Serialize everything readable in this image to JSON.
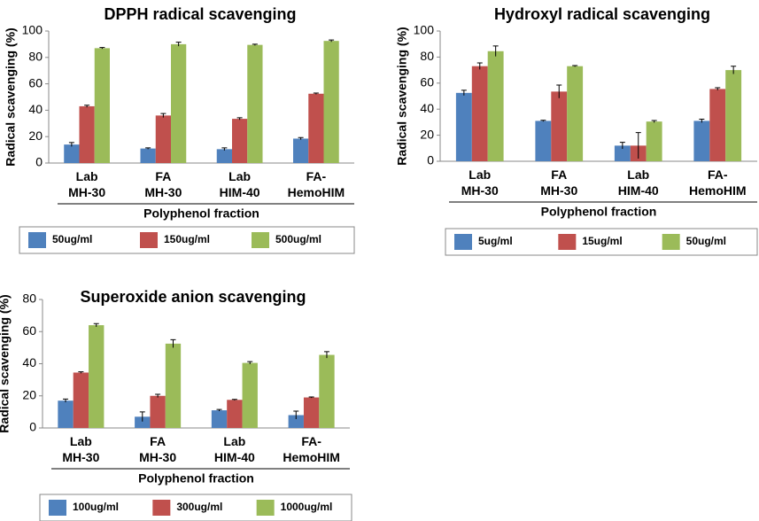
{
  "chart_data": [
    {
      "type": "bar",
      "title": "DPPH radical scavenging",
      "ylabel": "Radical scavenging (%)",
      "xlabel": "Polyphenol fraction",
      "categories": [
        "Lab\nMH-30",
        "FA\nMH-30",
        "Lab\nHIM-40",
        "FA-\nHemoHIM"
      ],
      "ylim": [
        0,
        100
      ],
      "yticks": [
        0,
        20,
        40,
        60,
        80,
        100
      ],
      "series": [
        {
          "name": "50ug/ml",
          "color": "#4f81bd",
          "values": [
            14,
            11,
            10.5,
            18.5
          ],
          "errors": [
            1.5,
            0.5,
            1,
            0.8
          ]
        },
        {
          "name": "150ug/ml",
          "color": "#c0504d",
          "values": [
            43,
            36,
            33.5,
            52.5
          ],
          "errors": [
            0.8,
            1.5,
            0.8,
            0.5
          ]
        },
        {
          "name": "500ug/ml",
          "color": "#9bbb59",
          "values": [
            87,
            90,
            89.5,
            92.5
          ],
          "errors": [
            0.5,
            1.5,
            0.5,
            0.7
          ]
        }
      ]
    },
    {
      "type": "bar",
      "title": "Hydroxyl radical scavenging",
      "ylabel": "Radical scavenging (%)",
      "xlabel": "Polyphenol fraction",
      "categories": [
        "Lab\nMH-30",
        "FA\nMH-30",
        "Lab\nHIM-40",
        "FA-\nHemoHIM"
      ],
      "ylim": [
        0,
        100
      ],
      "yticks": [
        0,
        20,
        40,
        60,
        80,
        100
      ],
      "series": [
        {
          "name": "5ug/ml",
          "color": "#4f81bd",
          "values": [
            52.5,
            31,
            12,
            31
          ],
          "errors": [
            2,
            0.5,
            2.5,
            1.3
          ]
        },
        {
          "name": "15ug/ml",
          "color": "#c0504d",
          "values": [
            73,
            53.5,
            12,
            55.5
          ],
          "errors": [
            2.5,
            5,
            10,
            1
          ]
        },
        {
          "name": "50ug/ml",
          "color": "#9bbb59",
          "values": [
            84.5,
            73,
            30.5,
            70
          ],
          "errors": [
            4,
            0.5,
            0.8,
            3
          ]
        }
      ]
    },
    {
      "type": "bar",
      "title": "Superoxide anion scavenging",
      "ylabel": "Radical scavenging (%)",
      "xlabel": "Polyphenol fraction",
      "categories": [
        "Lab\nMH-30",
        "FA\nMH-30",
        "Lab\nHIM-40",
        "FA-\nHemoHIM"
      ],
      "ylim": [
        0,
        80
      ],
      "yticks": [
        0,
        20,
        40,
        60,
        80
      ],
      "series": [
        {
          "name": "100ug/ml",
          "color": "#4f81bd",
          "values": [
            17,
            7,
            11,
            8
          ],
          "errors": [
            1,
            3,
            0.5,
            2.5
          ]
        },
        {
          "name": "300ug/ml",
          "color": "#c0504d",
          "values": [
            34.5,
            20,
            17.5,
            19
          ],
          "errors": [
            0.5,
            1,
            0.3,
            0.3
          ]
        },
        {
          "name": "1000ug/ml",
          "color": "#9bbb59",
          "values": [
            64,
            52.5,
            40.5,
            45.5
          ],
          "errors": [
            1,
            2.5,
            0.8,
            2
          ]
        }
      ]
    }
  ]
}
